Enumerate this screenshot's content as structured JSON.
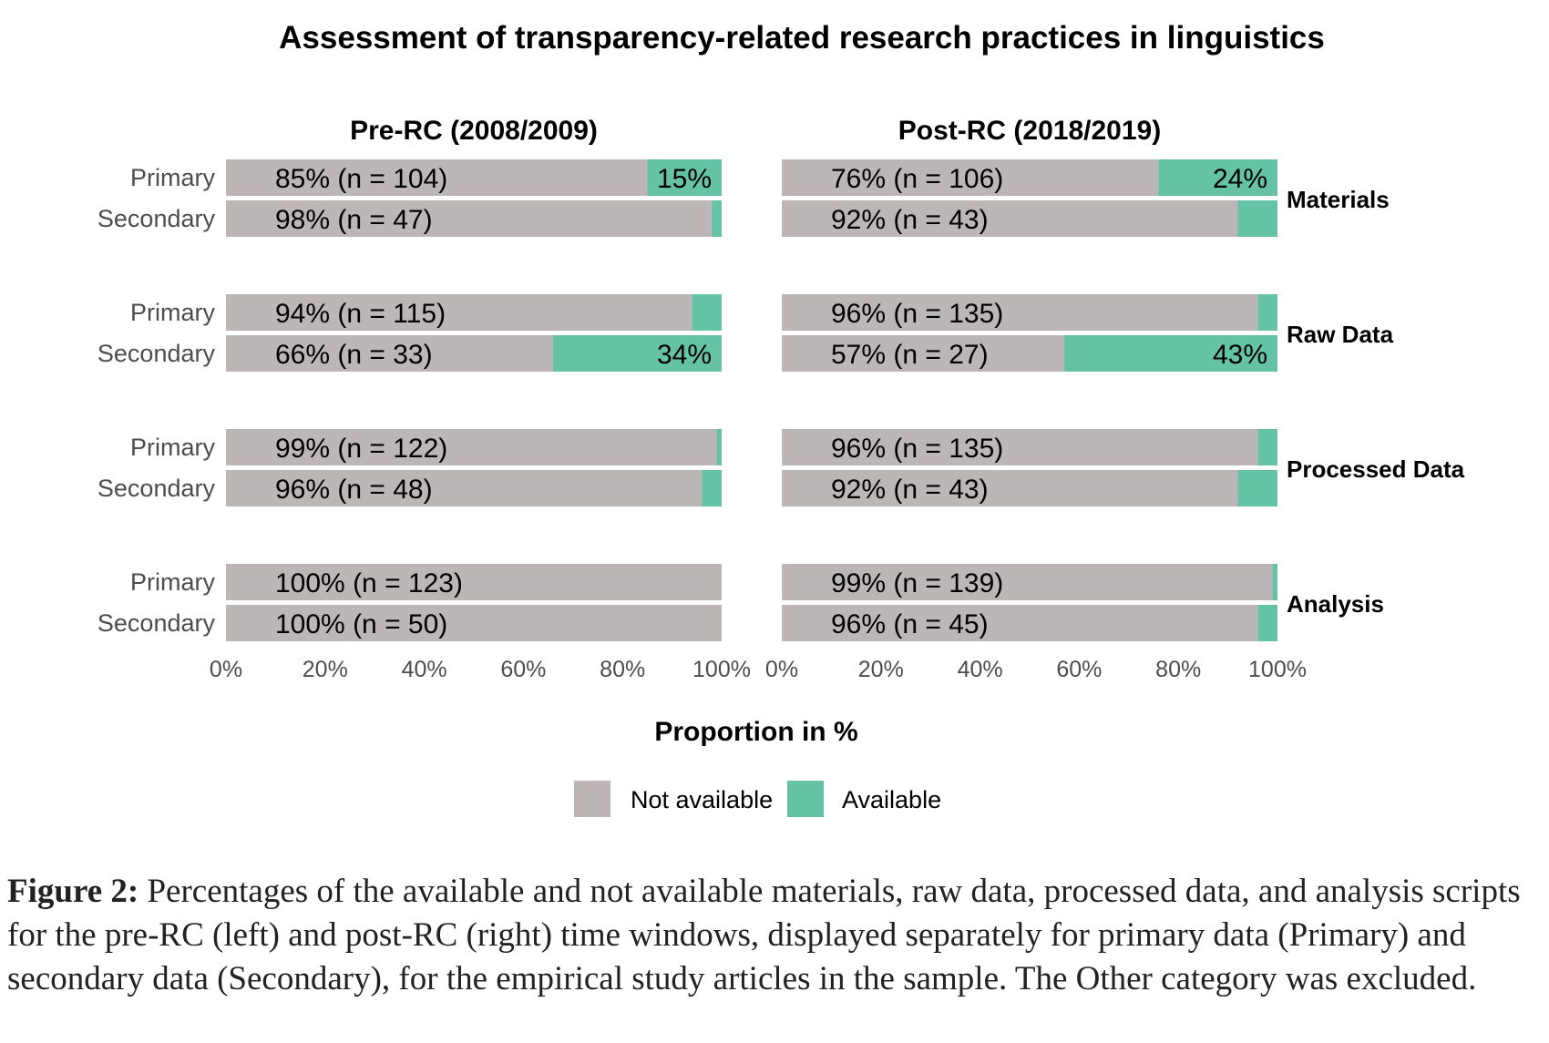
{
  "chart_data": {
    "type": "bar",
    "orientation": "horizontal-stacked",
    "title": "Assessment of transparency-related research practices in linguistics",
    "xlabel": "Proportion in %",
    "xlim": [
      0,
      100
    ],
    "x_ticks": [
      "0%",
      "20%",
      "40%",
      "60%",
      "80%",
      "100%"
    ],
    "panels": [
      "Pre-RC (2008/2009)",
      "Post-RC (2018/2019)"
    ],
    "facets": [
      "Materials",
      "Raw Data",
      "Processed Data",
      "Analysis"
    ],
    "row_labels": [
      "Primary",
      "Secondary"
    ],
    "legend": [
      {
        "name": "Not available",
        "color": "#bcb6b7"
      },
      {
        "name": "Available",
        "color": "#66c2a5"
      }
    ],
    "series": [
      {
        "panel": 0,
        "facets": [
          {
            "rows": [
              {
                "not_available": 85,
                "available": 15,
                "label": "85% (n = 104)",
                "available_label": "15%"
              },
              {
                "not_available": 98,
                "available": 2,
                "label": "98% (n = 47)",
                "available_label": ""
              }
            ]
          },
          {
            "rows": [
              {
                "not_available": 94,
                "available": 6,
                "label": "94% (n = 115)",
                "available_label": ""
              },
              {
                "not_available": 66,
                "available": 34,
                "label": "66% (n = 33)",
                "available_label": "34%"
              }
            ]
          },
          {
            "rows": [
              {
                "not_available": 99,
                "available": 1,
                "label": "99% (n = 122)",
                "available_label": ""
              },
              {
                "not_available": 96,
                "available": 4,
                "label": "96% (n = 48)",
                "available_label": ""
              }
            ]
          },
          {
            "rows": [
              {
                "not_available": 100,
                "available": 0,
                "label": "100% (n = 123)",
                "available_label": ""
              },
              {
                "not_available": 100,
                "available": 0,
                "label": "100% (n = 50)",
                "available_label": ""
              }
            ]
          }
        ]
      },
      {
        "panel": 1,
        "facets": [
          {
            "rows": [
              {
                "not_available": 76,
                "available": 24,
                "label": "76% (n = 106)",
                "available_label": "24%"
              },
              {
                "not_available": 92,
                "available": 8,
                "label": "92% (n = 43)",
                "available_label": ""
              }
            ]
          },
          {
            "rows": [
              {
                "not_available": 96,
                "available": 4,
                "label": "96% (n = 135)",
                "available_label": ""
              },
              {
                "not_available": 57,
                "available": 43,
                "label": "57% (n = 27)",
                "available_label": "43%"
              }
            ]
          },
          {
            "rows": [
              {
                "not_available": 96,
                "available": 4,
                "label": "96% (n = 135)",
                "available_label": ""
              },
              {
                "not_available": 92,
                "available": 8,
                "label": "92% (n = 43)",
                "available_label": ""
              }
            ]
          },
          {
            "rows": [
              {
                "not_available": 99,
                "available": 1,
                "label": "99% (n = 139)",
                "available_label": ""
              },
              {
                "not_available": 96,
                "available": 4,
                "label": "96% (n = 45)",
                "available_label": ""
              }
            ]
          }
        ]
      }
    ]
  },
  "caption": {
    "label": "Figure 2:",
    "text": " Percentages of the available and not available materials, raw data, processed data, and analysis scripts for the pre-RC (left) and post-RC (right) time windows, displayed separately for primary data (Primary) and secondary data (Secondary), for the empirical study articles in the sample. The Other category was excluded."
  }
}
